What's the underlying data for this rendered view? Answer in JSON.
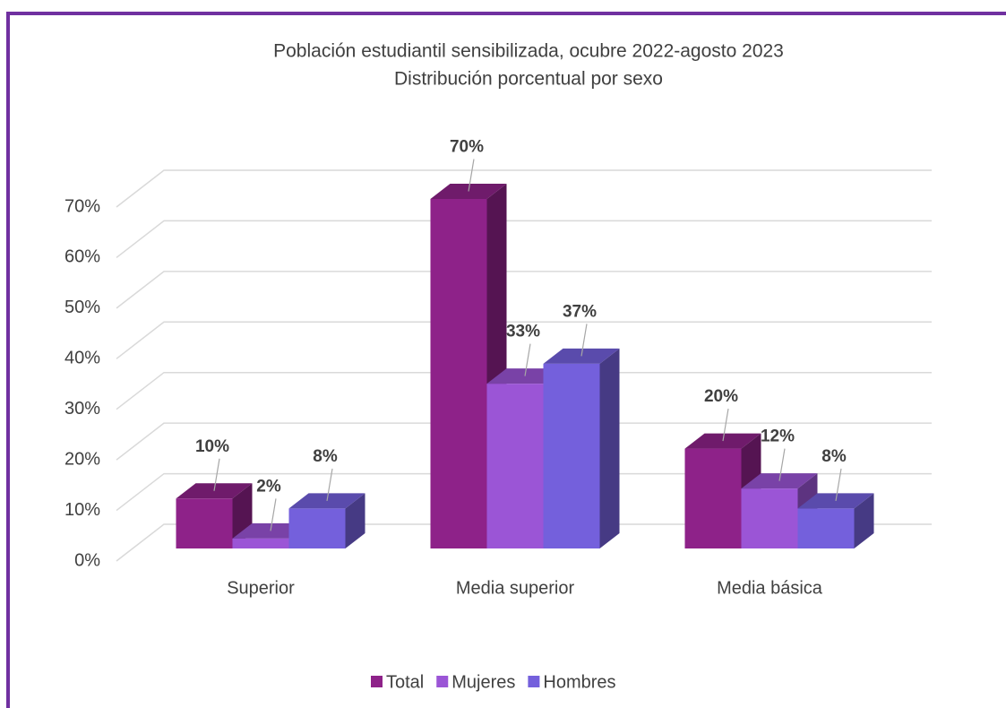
{
  "chart_data": {
    "type": "bar3d",
    "title": "Población estudiantil sensibilizada, ocubre 2022-agosto 2023",
    "subtitle": "Distribución porcentual por sexo",
    "categories": [
      "Superior",
      "Media superior",
      "Media básica"
    ],
    "series": [
      {
        "name": "Total",
        "color": "#8e2289",
        "values": [
          10,
          70,
          20
        ],
        "value_labels": [
          "10%",
          "70%",
          "20%"
        ]
      },
      {
        "name": "Mujeres",
        "color": "#9b55d6",
        "values": [
          2,
          33,
          12
        ],
        "value_labels": [
          "2%",
          "33%",
          "12%"
        ]
      },
      {
        "name": "Hombres",
        "color": "#7460dc",
        "values": [
          8,
          37,
          8
        ],
        "value_labels": [
          "8%",
          "37%",
          "8%"
        ]
      }
    ],
    "ylim": [
      0,
      70
    ],
    "yticks": [
      {
        "value": 0,
        "label": "0%"
      },
      {
        "value": 10,
        "label": "10%"
      },
      {
        "value": 20,
        "label": "20%"
      },
      {
        "value": 30,
        "label": "30%"
      },
      {
        "value": 40,
        "label": "40%"
      },
      {
        "value": 50,
        "label": "50%"
      },
      {
        "value": 60,
        "label": "60%"
      },
      {
        "value": 70,
        "label": "70%"
      }
    ],
    "grid": true,
    "legend": "bottom"
  }
}
